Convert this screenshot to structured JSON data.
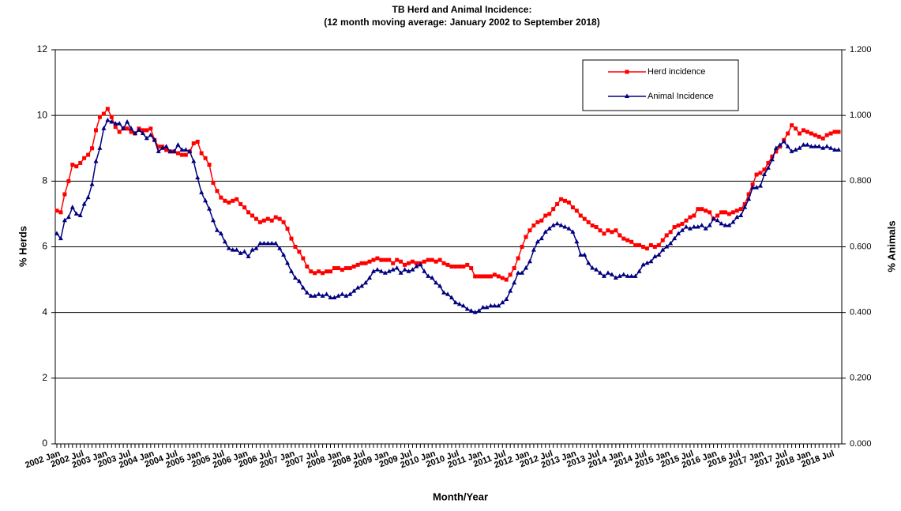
{
  "chart_data": {
    "type": "line",
    "title": "TB Herd and Animal Incidence:",
    "subtitle": "(12 month moving average: January 2002 to September 2018)",
    "x_label": "Month/Year",
    "y_label": "% Herds",
    "y2_label": "% Animals",
    "categories": [
      "2002 Jan",
      null,
      null,
      null,
      null,
      null,
      "2002 Jul",
      null,
      null,
      null,
      null,
      null,
      "2003 Jan",
      null,
      null,
      null,
      null,
      null,
      "2003 Jul",
      null,
      null,
      null,
      null,
      null,
      "2004 Jan",
      null,
      null,
      null,
      null,
      null,
      "2004 Jul",
      null,
      null,
      null,
      null,
      null,
      "2005 Jan",
      null,
      null,
      null,
      null,
      null,
      "2005 Jul",
      null,
      null,
      null,
      null,
      null,
      "2006 Jan",
      null,
      null,
      null,
      null,
      null,
      "2006 Jul",
      null,
      null,
      null,
      null,
      null,
      "2007 Jan",
      null,
      null,
      null,
      null,
      null,
      "2007 Jul",
      null,
      null,
      null,
      null,
      null,
      "2008 Jan",
      null,
      null,
      null,
      null,
      null,
      "2008 Jul",
      null,
      null,
      null,
      null,
      null,
      "2009 Jan",
      null,
      null,
      null,
      null,
      null,
      "2009 Jul",
      null,
      null,
      null,
      null,
      null,
      "2010 Jan",
      null,
      null,
      null,
      null,
      null,
      "2010 Jul",
      null,
      null,
      null,
      null,
      null,
      "2011 Jan",
      null,
      null,
      null,
      null,
      null,
      "2011 Jul",
      null,
      null,
      null,
      null,
      null,
      "2012 Jan",
      null,
      null,
      null,
      null,
      null,
      "2012 Jul",
      null,
      null,
      null,
      null,
      null,
      "2013 Jan",
      null,
      null,
      null,
      null,
      null,
      "2013 Jul",
      null,
      null,
      null,
      null,
      null,
      "2014 Jan",
      null,
      null,
      null,
      null,
      null,
      "2014 Jul",
      null,
      null,
      null,
      null,
      null,
      "2015 Jan",
      null,
      null,
      null,
      null,
      null,
      "2015 Jul",
      null,
      null,
      null,
      null,
      null,
      "2016 Jan",
      null,
      null,
      null,
      null,
      null,
      "2016 Jul",
      null,
      null,
      null,
      null,
      null,
      "2017 Jan",
      null,
      null,
      null,
      null,
      null,
      "2017 Jul",
      null,
      null,
      null,
      null,
      null,
      "2018 Jan",
      null,
      null,
      null,
      null,
      null,
      "2018 Jul",
      null,
      null
    ],
    "series": [
      {
        "name": "Herd incidence",
        "color": "#ff0000",
        "marker": "square",
        "values": [
          7.1,
          7.05,
          7.6,
          8.0,
          8.5,
          8.45,
          8.55,
          8.7,
          8.8,
          9.0,
          9.55,
          9.95,
          10.05,
          10.2,
          9.95,
          9.65,
          9.5,
          9.6,
          9.6,
          9.5,
          9.45,
          9.6,
          9.55,
          9.55,
          9.6,
          9.25,
          9.05,
          9.05,
          8.95,
          8.9,
          8.9,
          8.85,
          8.8,
          8.8,
          8.9,
          9.15,
          9.2,
          8.85,
          8.7,
          8.5,
          7.95,
          7.7,
          7.5,
          7.4,
          7.35,
          7.4,
          7.45,
          7.3,
          7.2,
          7.05,
          6.95,
          6.85,
          6.75,
          6.8,
          6.85,
          6.8,
          6.9,
          6.85,
          6.75,
          6.55,
          6.25,
          6.0,
          5.85,
          5.65,
          5.4,
          5.25,
          5.2,
          5.25,
          5.2,
          5.25,
          5.25,
          5.35,
          5.35,
          5.3,
          5.35,
          5.35,
          5.4,
          5.45,
          5.5,
          5.5,
          5.55,
          5.6,
          5.65,
          5.6,
          5.6,
          5.6,
          5.5,
          5.6,
          5.55,
          5.45,
          5.5,
          5.55,
          5.5,
          5.5,
          5.55,
          5.6,
          5.6,
          5.55,
          5.6,
          5.5,
          5.45,
          5.4,
          5.4,
          5.4,
          5.4,
          5.45,
          5.35,
          5.1,
          5.1,
          5.1,
          5.1,
          5.1,
          5.15,
          5.1,
          5.05,
          5.0,
          5.15,
          5.35,
          5.65,
          6.0,
          6.3,
          6.5,
          6.65,
          6.75,
          6.8,
          6.95,
          7.0,
          7.15,
          7.3,
          7.45,
          7.4,
          7.35,
          7.2,
          7.1,
          6.95,
          6.85,
          6.75,
          6.65,
          6.6,
          6.5,
          6.4,
          6.5,
          6.45,
          6.5,
          6.35,
          6.25,
          6.2,
          6.15,
          6.05,
          6.05,
          6.0,
          5.95,
          6.05,
          6.0,
          6.05,
          6.2,
          6.35,
          6.45,
          6.6,
          6.65,
          6.7,
          6.8,
          6.9,
          6.95,
          7.15,
          7.15,
          7.1,
          7.05,
          6.85,
          6.95,
          7.05,
          7.05,
          7.0,
          7.05,
          7.1,
          7.15,
          7.3,
          7.6,
          7.9,
          8.2,
          8.25,
          8.35,
          8.55,
          8.75,
          8.9,
          9.05,
          9.25,
          9.45,
          9.7,
          9.6,
          9.45,
          9.55,
          9.5,
          9.45,
          9.4,
          9.35,
          9.3,
          9.4,
          9.45,
          9.5,
          9.5
        ]
      },
      {
        "name": "Animal Incidence",
        "color": "#000080",
        "marker": "triangle",
        "axis": "y2",
        "values": [
          0.64,
          0.625,
          0.68,
          0.69,
          0.72,
          0.7,
          0.695,
          0.73,
          0.75,
          0.79,
          0.86,
          0.9,
          0.96,
          0.985,
          0.98,
          0.975,
          0.975,
          0.96,
          0.98,
          0.96,
          0.945,
          0.955,
          0.945,
          0.93,
          0.94,
          0.925,
          0.89,
          0.9,
          0.905,
          0.89,
          0.89,
          0.91,
          0.895,
          0.895,
          0.89,
          0.86,
          0.81,
          0.765,
          0.74,
          0.715,
          0.68,
          0.65,
          0.64,
          0.615,
          0.595,
          0.59,
          0.59,
          0.58,
          0.585,
          0.57,
          0.59,
          0.595,
          0.61,
          0.61,
          0.61,
          0.61,
          0.61,
          0.595,
          0.575,
          0.55,
          0.525,
          0.505,
          0.495,
          0.475,
          0.46,
          0.45,
          0.45,
          0.455,
          0.45,
          0.455,
          0.445,
          0.445,
          0.45,
          0.455,
          0.45,
          0.455,
          0.465,
          0.475,
          0.48,
          0.49,
          0.505,
          0.525,
          0.53,
          0.525,
          0.52,
          0.525,
          0.53,
          0.535,
          0.52,
          0.53,
          0.525,
          0.53,
          0.54,
          0.545,
          0.525,
          0.51,
          0.505,
          0.49,
          0.48,
          0.46,
          0.455,
          0.445,
          0.43,
          0.425,
          0.42,
          0.41,
          0.405,
          0.4,
          0.405,
          0.415,
          0.415,
          0.42,
          0.42,
          0.42,
          0.43,
          0.44,
          0.465,
          0.49,
          0.52,
          0.52,
          0.535,
          0.555,
          0.59,
          0.615,
          0.625,
          0.645,
          0.655,
          0.665,
          0.67,
          0.665,
          0.66,
          0.655,
          0.645,
          0.615,
          0.575,
          0.575,
          0.55,
          0.535,
          0.53,
          0.52,
          0.51,
          0.52,
          0.515,
          0.505,
          0.51,
          0.515,
          0.51,
          0.51,
          0.51,
          0.525,
          0.545,
          0.55,
          0.555,
          0.57,
          0.575,
          0.59,
          0.6,
          0.61,
          0.625,
          0.64,
          0.65,
          0.66,
          0.655,
          0.66,
          0.66,
          0.665,
          0.655,
          0.665,
          0.685,
          0.68,
          0.67,
          0.665,
          0.665,
          0.675,
          0.69,
          0.695,
          0.72,
          0.745,
          0.78,
          0.78,
          0.785,
          0.82,
          0.84,
          0.865,
          0.9,
          0.91,
          0.92,
          0.905,
          0.89,
          0.895,
          0.9,
          0.91,
          0.91,
          0.905,
          0.905,
          0.905,
          0.9,
          0.905,
          0.9,
          0.895,
          0.895
        ]
      }
    ],
    "ylim": [
      0,
      12
    ],
    "yticks": [
      0,
      2,
      4,
      6,
      8,
      10,
      12
    ],
    "y2lim": [
      0,
      1.2
    ],
    "y2ticks": [
      {
        "value": 0,
        "label": "0.000"
      },
      {
        "value": 0.2,
        "label": "0.200"
      },
      {
        "value": 0.4,
        "label": "0.400"
      },
      {
        "value": 0.6,
        "label": "0.600"
      },
      {
        "value": 0.8,
        "label": "0.800"
      },
      {
        "value": 1.0,
        "label": "1.000"
      },
      {
        "value": 1.2,
        "label": "1.200"
      }
    ],
    "grid": true,
    "legend": "top-right"
  }
}
